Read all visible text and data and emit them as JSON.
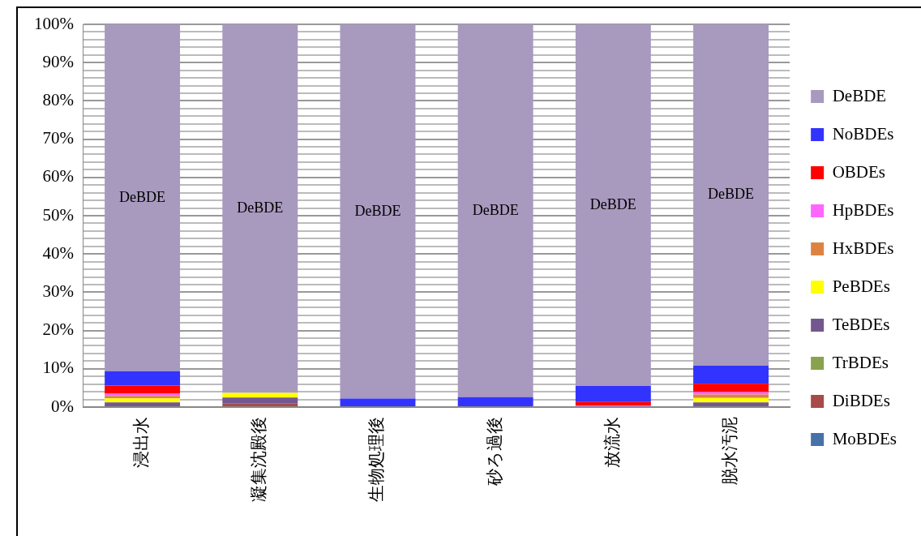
{
  "chart_data": {
    "type": "bar",
    "stacked": true,
    "categories": [
      "浸出水",
      "凝集沈殿後",
      "生物処理後",
      "砂ろ過後",
      "放流水",
      "脱水汚泥"
    ],
    "series": [
      {
        "name": "MoBDEs",
        "color": "#4672a8",
        "values": [
          0,
          0,
          0,
          0,
          0,
          0
        ]
      },
      {
        "name": "DiBDEs",
        "color": "#a84a4a",
        "values": [
          0,
          0.9,
          0,
          0,
          0,
          0
        ]
      },
      {
        "name": "TrBDEs",
        "color": "#88a24e",
        "values": [
          0,
          0,
          0,
          0,
          0,
          0
        ]
      },
      {
        "name": "TeBDEs",
        "color": "#72588f",
        "values": [
          1.2,
          1.6,
          0,
          0,
          0,
          1.2
        ]
      },
      {
        "name": "PeBDEs",
        "color": "#ffff00",
        "values": [
          1.1,
          1.2,
          0,
          0,
          0,
          1.2
        ]
      },
      {
        "name": "HxBDEs",
        "color": "#dd8342",
        "values": [
          0.6,
          0,
          0,
          0,
          0,
          0.9
        ]
      },
      {
        "name": "HpBDEs",
        "color": "#ff66ff",
        "values": [
          0.6,
          0,
          0,
          0,
          0.4,
          0.6
        ]
      },
      {
        "name": "OBDEs",
        "color": "#ff0000",
        "values": [
          2.1,
          0,
          0,
          0,
          0.9,
          2.2
        ]
      },
      {
        "name": "NoBDEs",
        "color": "#3333ff",
        "values": [
          3.8,
          0,
          2.2,
          2.6,
          4.2,
          4.7
        ]
      },
      {
        "name": "DeBDE",
        "color": "#a899be",
        "values": [
          90.6,
          96.3,
          97.8,
          97.4,
          94.5,
          89.2
        ]
      }
    ],
    "ylim": [
      0,
      100
    ],
    "yticks": [
      {
        "value": 0,
        "label": "0%"
      },
      {
        "value": 2,
        "label": null
      },
      {
        "value": 4,
        "label": null
      },
      {
        "value": 6,
        "label": null
      },
      {
        "value": 8,
        "label": null
      },
      {
        "value": 10,
        "label": "10%"
      },
      {
        "value": 12,
        "label": null
      },
      {
        "value": 14,
        "label": null
      },
      {
        "value": 16,
        "label": null
      },
      {
        "value": 18,
        "label": null
      },
      {
        "value": 20,
        "label": "20%"
      },
      {
        "value": 22,
        "label": null
      },
      {
        "value": 24,
        "label": null
      },
      {
        "value": 26,
        "label": null
      },
      {
        "value": 28,
        "label": null
      },
      {
        "value": 30,
        "label": "30%"
      },
      {
        "value": 32,
        "label": null
      },
      {
        "value": 34,
        "label": null
      },
      {
        "value": 36,
        "label": null
      },
      {
        "value": 38,
        "label": null
      },
      {
        "value": 40,
        "label": "40%"
      },
      {
        "value": 42,
        "label": null
      },
      {
        "value": 44,
        "label": null
      },
      {
        "value": 46,
        "label": null
      },
      {
        "value": 48,
        "label": null
      },
      {
        "value": 50,
        "label": "50%"
      },
      {
        "value": 52,
        "label": null
      },
      {
        "value": 54,
        "label": null
      },
      {
        "value": 56,
        "label": null
      },
      {
        "value": 58,
        "label": null
      },
      {
        "value": 60,
        "label": "60%"
      },
      {
        "value": 62,
        "label": null
      },
      {
        "value": 64,
        "label": null
      },
      {
        "value": 66,
        "label": null
      },
      {
        "value": 68,
        "label": null
      },
      {
        "value": 70,
        "label": "70%"
      },
      {
        "value": 72,
        "label": null
      },
      {
        "value": 74,
        "label": null
      },
      {
        "value": 76,
        "label": null
      },
      {
        "value": 78,
        "label": null
      },
      {
        "value": 80,
        "label": "80%"
      },
      {
        "value": 82,
        "label": null
      },
      {
        "value": 84,
        "label": null
      },
      {
        "value": 86,
        "label": null
      },
      {
        "value": 88,
        "label": null
      },
      {
        "value": 90,
        "label": "90%"
      },
      {
        "value": 92,
        "label": null
      },
      {
        "value": 94,
        "label": null
      },
      {
        "value": 96,
        "label": null
      },
      {
        "value": 98,
        "label": null
      },
      {
        "value": 100,
        "label": "100%"
      }
    ],
    "grid": "y",
    "legend": "right",
    "annotations": [
      "DeBDE",
      "DeBDE",
      "DeBDE",
      "DeBDE",
      "DeBDE",
      "DeBDE"
    ]
  }
}
